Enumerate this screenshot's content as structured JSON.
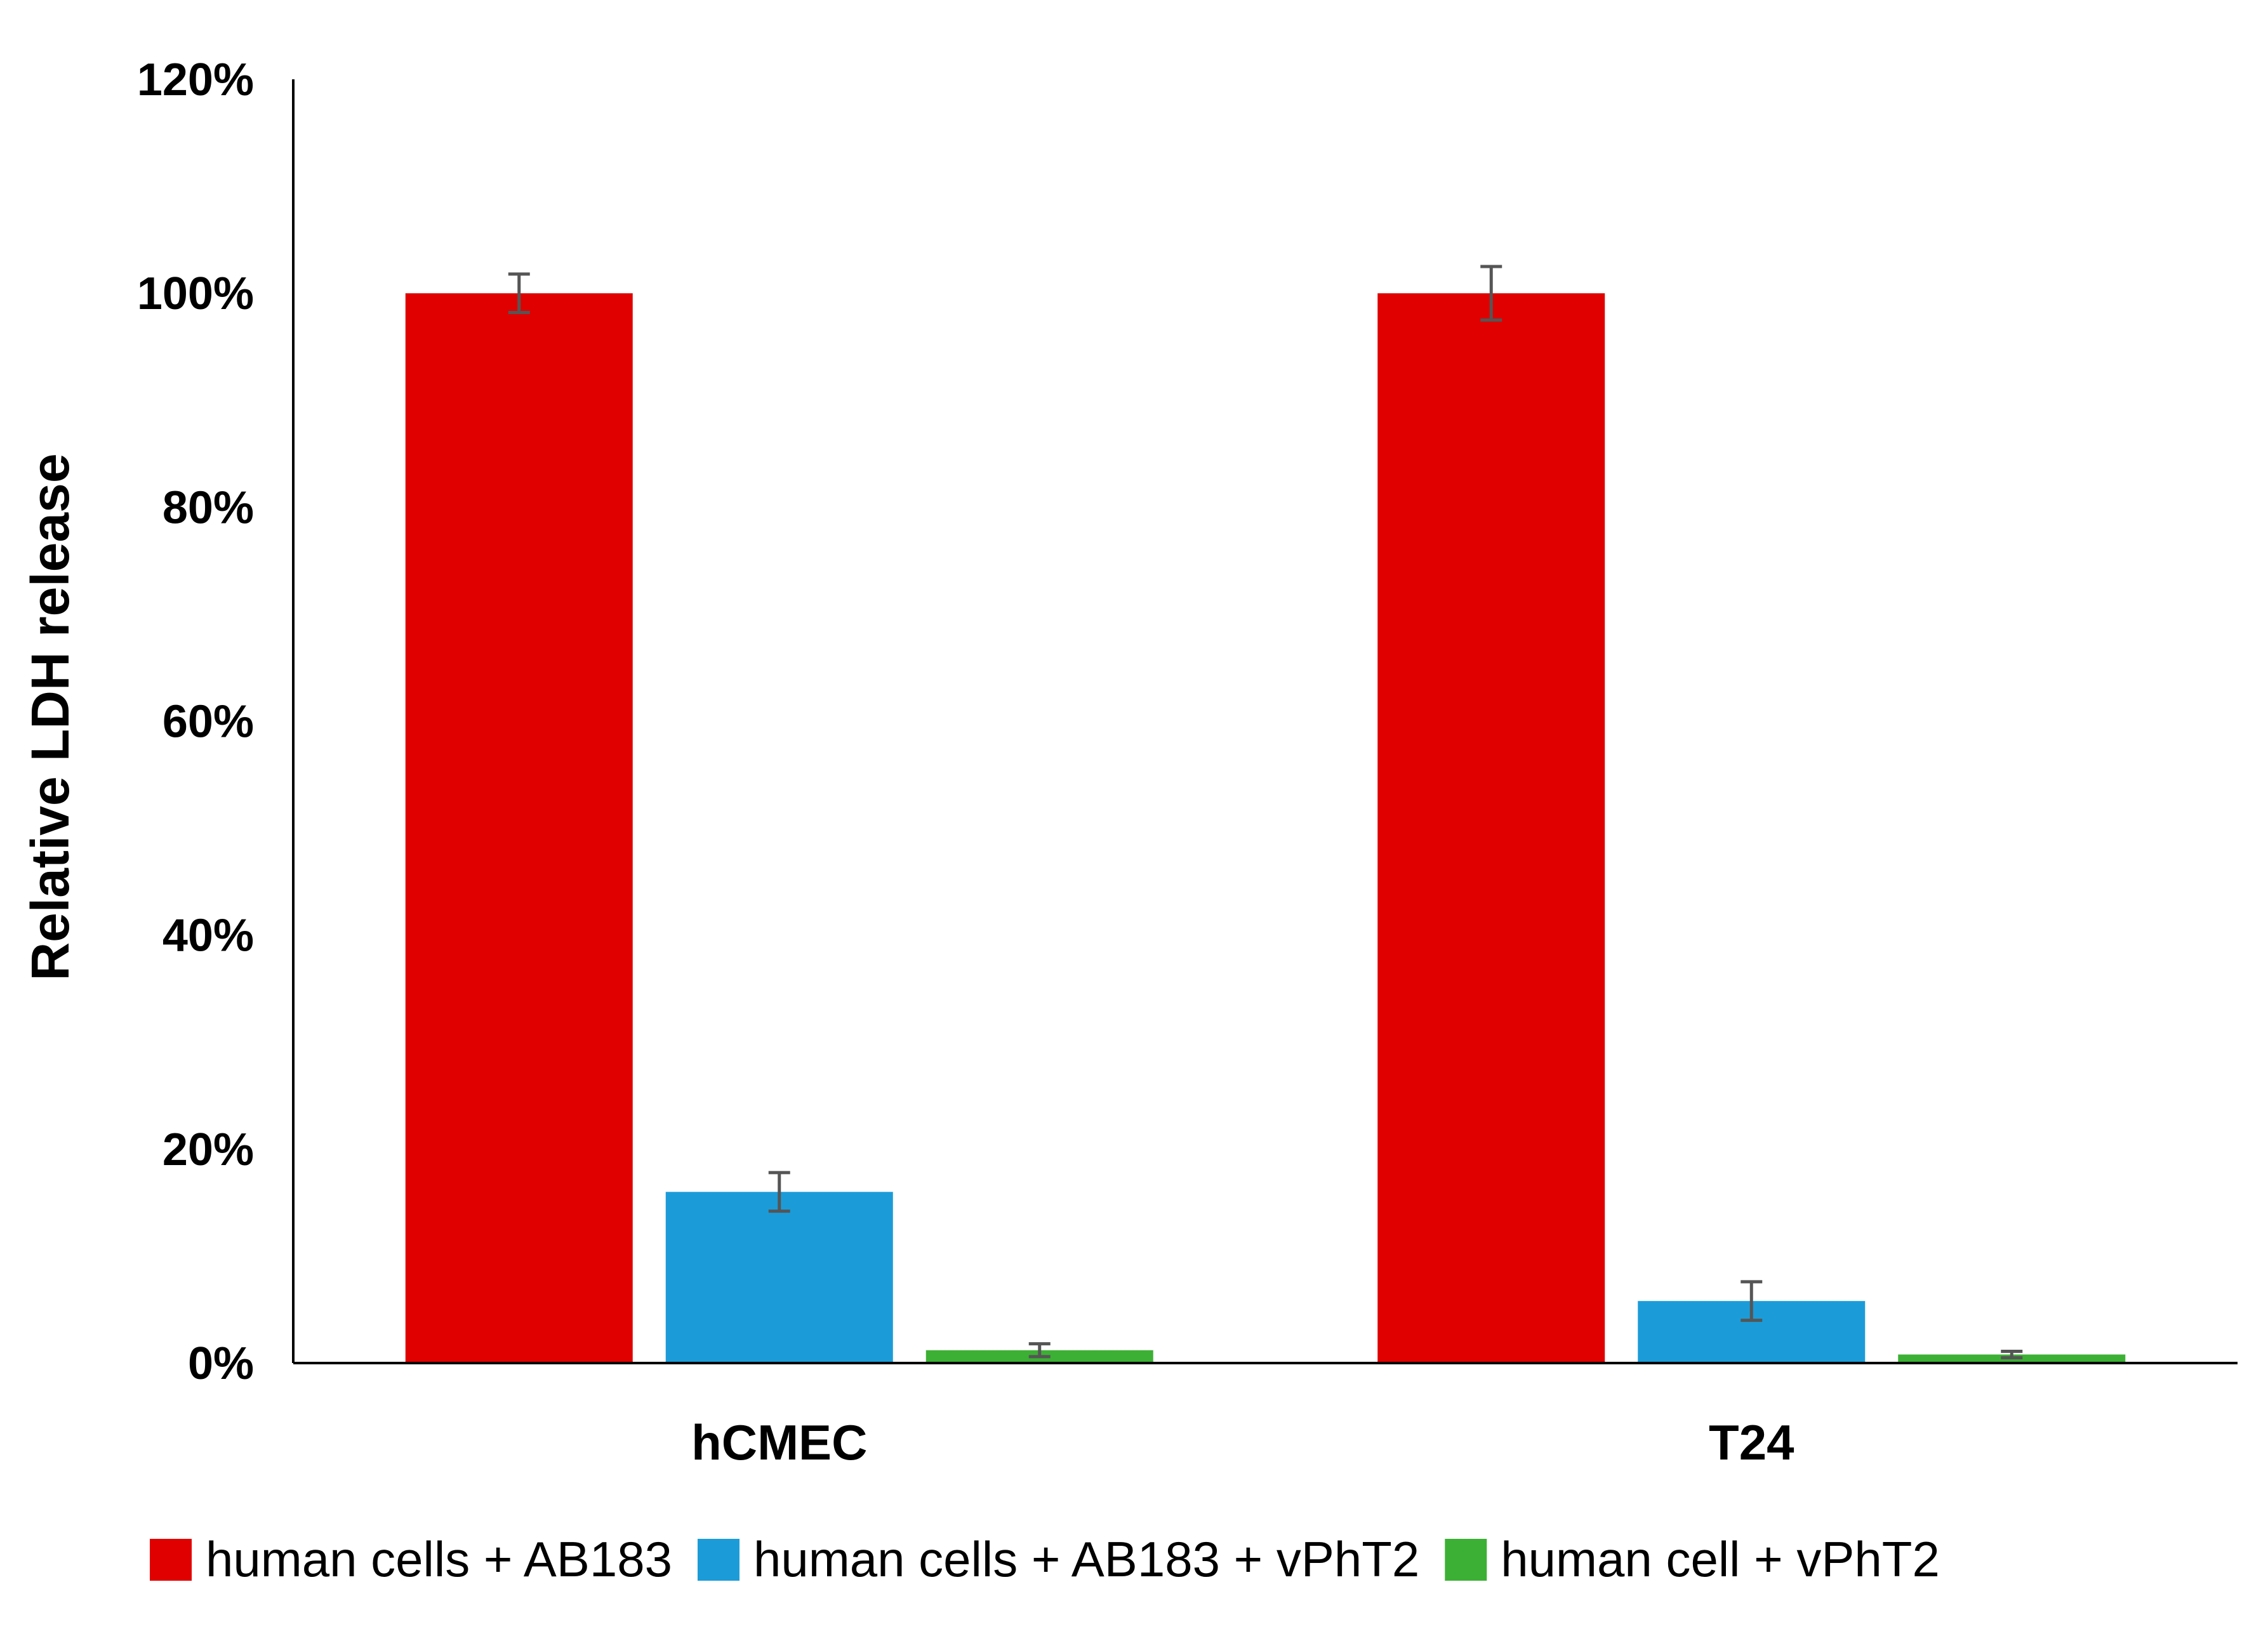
{
  "chart_data": {
    "type": "bar",
    "title": "",
    "xlabel": "",
    "ylabel": "Relative LDH release",
    "ylim": [
      0,
      120
    ],
    "yticks": [
      0,
      20,
      40,
      60,
      80,
      100,
      120
    ],
    "ytick_labels": [
      "0%",
      "20%",
      "40%",
      "60%",
      "80%",
      "100%",
      "120%"
    ],
    "grid": false,
    "legend_position": "bottom",
    "categories": [
      "hCMEC",
      "T24"
    ],
    "series": [
      {
        "name": "human cells + AB183",
        "color": "#e00000",
        "values": [
          100,
          100
        ],
        "errors": [
          1.8,
          2.5
        ]
      },
      {
        "name": "human cells + AB183 + vPhT2",
        "color": "#1b9cd8",
        "values": [
          16,
          5.8
        ],
        "errors": [
          1.8,
          1.8
        ]
      },
      {
        "name": "human cell + vPhT2",
        "color": "#3cb034",
        "values": [
          1.2,
          0.8
        ],
        "errors": [
          0.6,
          0.3
        ]
      }
    ]
  }
}
